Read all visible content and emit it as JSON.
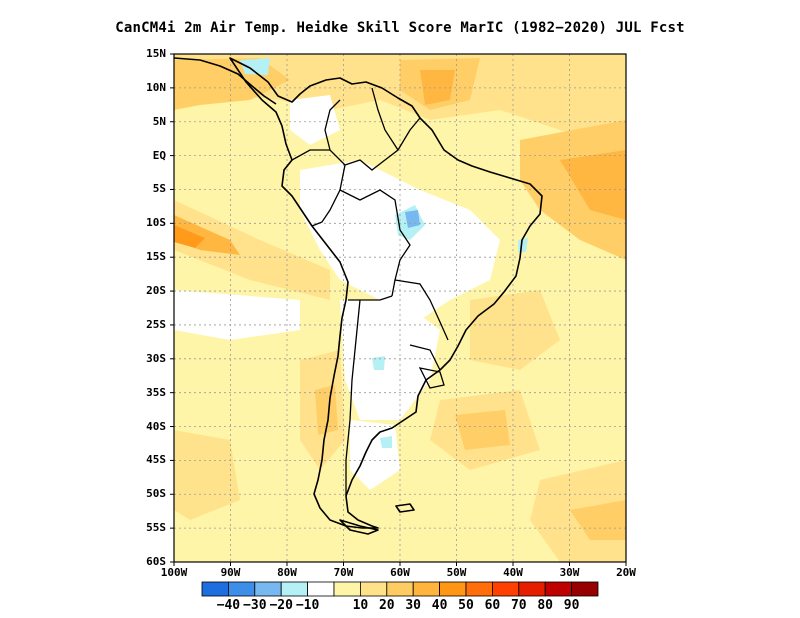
{
  "title": "CanCM4i  2m Air Temp. Heidke Skill Score MarIC (1982−2020) JUL Fcst",
  "map": {
    "lat_labels": [
      "15N",
      "10N",
      "5N",
      "EQ",
      "5S",
      "10S",
      "15S",
      "20S",
      "25S",
      "30S",
      "35S",
      "40S",
      "45S",
      "50S",
      "55S",
      "60S"
    ],
    "lon_labels": [
      "100W",
      "90W",
      "80W",
      "70W",
      "60W",
      "50W",
      "40W",
      "30W",
      "20W"
    ]
  },
  "colorbar": {
    "colors": [
      "#1e6ee0",
      "#3c8ee8",
      "#78b8f0",
      "#b4f0f4",
      "#ffffff",
      "#fff5a8",
      "#ffe28a",
      "#ffcc64",
      "#ffb43c",
      "#ff9614",
      "#ff6e0a",
      "#ff4000",
      "#e61e00",
      "#be0000",
      "#960000"
    ],
    "labels": [
      "−40",
      "−30",
      "−20",
      "−10",
      "10",
      "20",
      "30",
      "40",
      "50",
      "60",
      "70",
      "80",
      "90"
    ]
  },
  "colors": {
    "land_outline": "#000000",
    "grid": "#9a9a9a",
    "frame": "#000000"
  }
}
